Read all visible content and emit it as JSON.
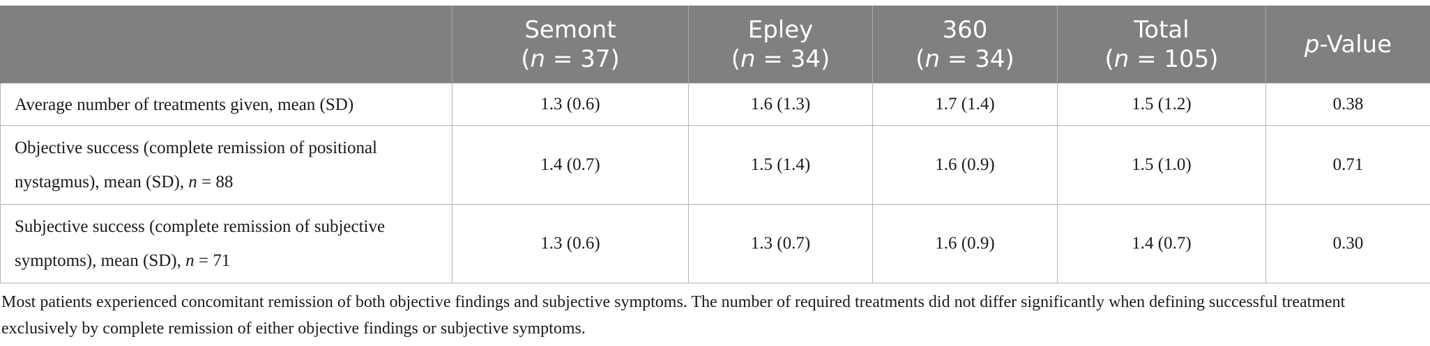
{
  "table": {
    "header": {
      "label_col": "",
      "columns": [
        {
          "name": "Semont",
          "n_prefix": "(",
          "n_var": "n",
          "n_rest": " = 37)"
        },
        {
          "name": "Epley",
          "n_prefix": "(",
          "n_var": "n",
          "n_rest": " = 34)"
        },
        {
          "name": "360",
          "n_prefix": "(",
          "n_var": "n",
          "n_rest": " = 34)"
        },
        {
          "name": "Total",
          "n_prefix": "(",
          "n_var": "n",
          "n_rest": " = 105)"
        }
      ],
      "pvalue": {
        "var": "p",
        "rest": "-Value"
      }
    },
    "rows": [
      {
        "label": "Average number of treatments given, mean (SD)",
        "label_n_var": "",
        "label_n_rest": "",
        "values": [
          "1.3 (0.6)",
          "1.6 (1.3)",
          "1.7 (1.4)",
          "1.5 (1.2)",
          "0.38"
        ]
      },
      {
        "label": "Objective success (complete remission of positional nystagmus), mean (SD), ",
        "label_n_var": "n",
        "label_n_rest": " = 88",
        "values": [
          "1.4 (0.7)",
          "1.5 (1.4)",
          "1.6 (0.9)",
          "1.5 (1.0)",
          "0.71"
        ]
      },
      {
        "label": "Subjective success (complete remission of subjective symptoms), mean (SD), ",
        "label_n_var": "n",
        "label_n_rest": " = 71",
        "values": [
          "1.3 (0.6)",
          "1.3 (0.7)",
          "1.6 (0.9)",
          "1.4 (0.7)",
          "0.30"
        ]
      }
    ]
  },
  "footnote": "Most patients experienced concomitant remission of both objective findings and subjective symptoms. The number of required treatments did not differ significantly when defining successful treatment exclusively by complete remission of either objective findings or subjective symptoms."
}
